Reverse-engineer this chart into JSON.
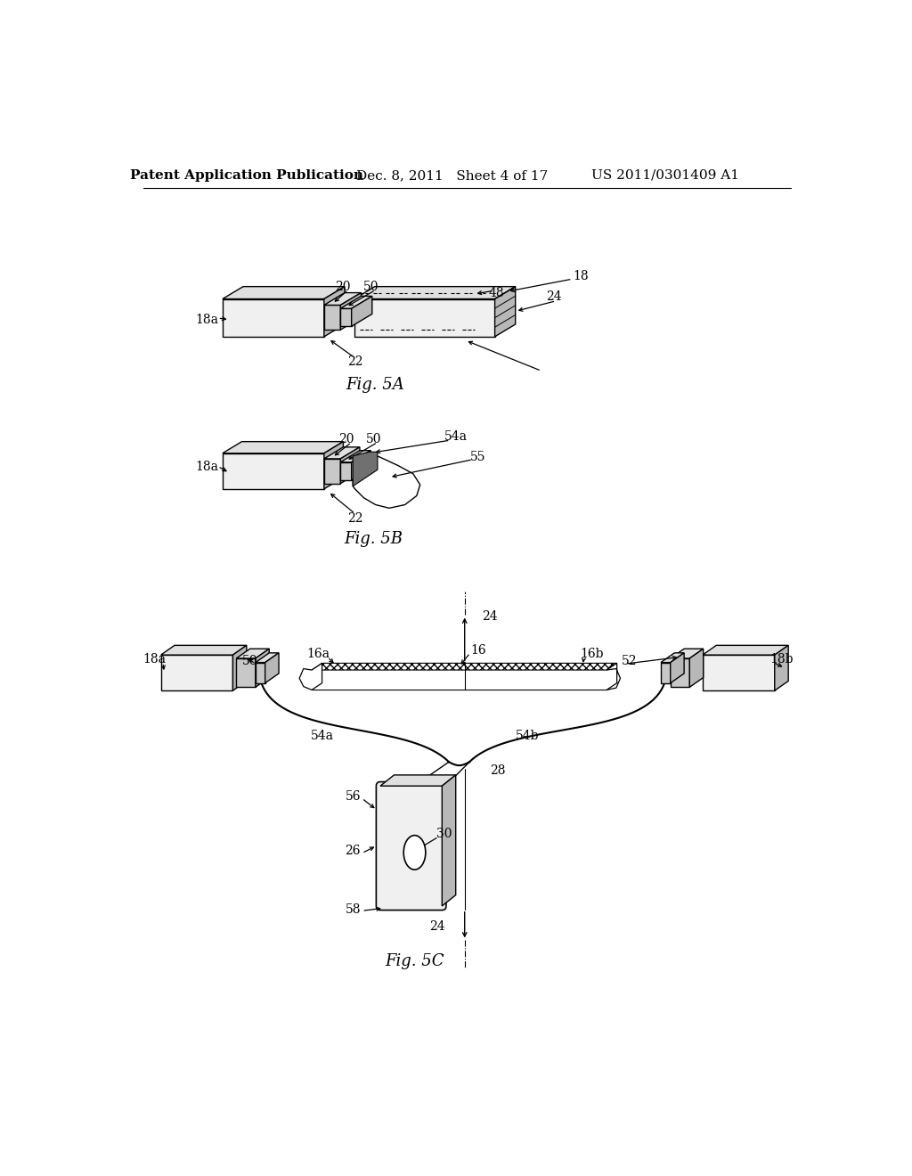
{
  "header_left": "Patent Application Publication",
  "header_mid": "Dec. 8, 2011   Sheet 4 of 17",
  "header_right": "US 2011/0301409 A1",
  "fig5a_label": "Fig. 5A",
  "fig5b_label": "Fig. 5B",
  "fig5c_label": "Fig. 5C",
  "bg_color": "#ffffff",
  "lc": "#000000",
  "gray_top": "#e0e0e0",
  "gray_side": "#b8b8b8",
  "gray_face": "#f0f0f0",
  "gray_conn": "#c8c8c8",
  "gray_dark": "#707070"
}
